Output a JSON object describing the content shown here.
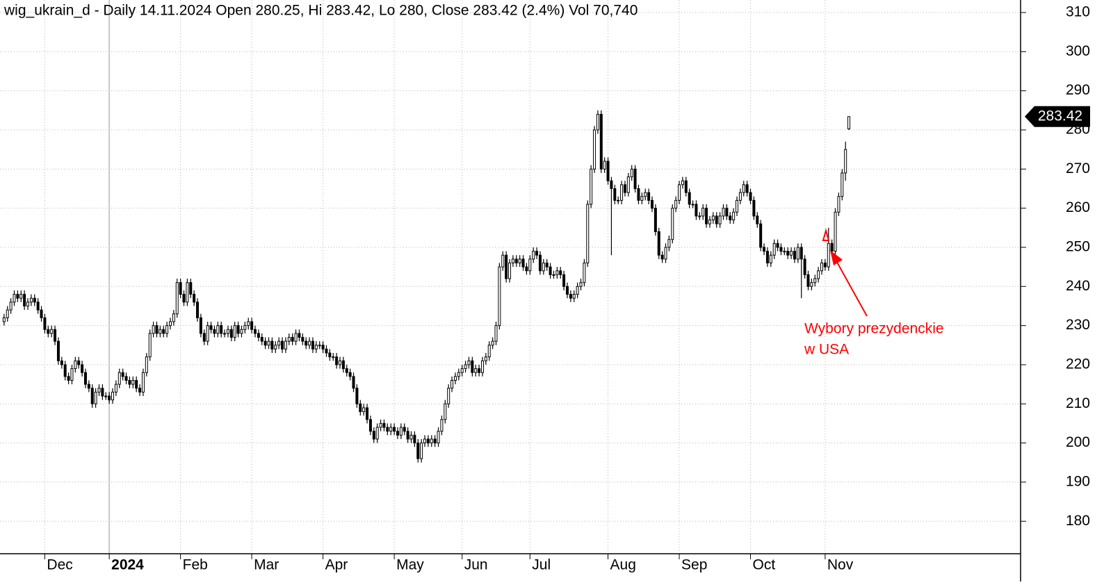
{
  "chart_data": {
    "type": "candlestick",
    "title": "wig_ukrain_d - Daily 14.11.2024 Open 280.25, Hi 283.42, Lo 280, Close 283.42 (2.4%) Vol 70,740",
    "annotation": [
      "Wybory prezydenckie",
      "w USA"
    ],
    "up_color": "#ffffff",
    "down_color": "#000000",
    "annotation_color": "#ff0000",
    "grid": true,
    "xlim": [
      -1.2,
      299.6
    ],
    "xticks": [
      {
        "value": 12,
        "label": "Dec"
      },
      {
        "value": 31,
        "label": "2024"
      },
      {
        "value": 52,
        "label": "Feb"
      },
      {
        "value": 73,
        "label": "Mar"
      },
      {
        "value": 94,
        "label": "Apr"
      },
      {
        "value": 115,
        "label": "May"
      },
      {
        "value": 135,
        "label": "Jun"
      },
      {
        "value": 155,
        "label": "Jul"
      },
      {
        "value": 178,
        "label": "Aug"
      },
      {
        "value": 199,
        "label": "Sep"
      },
      {
        "value": 220,
        "label": "Oct"
      },
      {
        "value": 242,
        "label": "Nov"
      }
    ],
    "ylim": [
      171.7,
      313.2
    ],
    "yticks": [
      180,
      190,
      200,
      210,
      220,
      230,
      240,
      250,
      260,
      270,
      280,
      290,
      300,
      310
    ],
    "close": [
      232,
      234,
      236,
      238,
      237,
      238,
      235,
      236,
      237,
      236,
      234,
      232,
      229,
      228,
      229,
      226,
      221,
      220,
      217,
      216,
      219,
      221,
      220,
      218,
      215,
      214,
      210,
      213,
      214,
      212,
      212,
      211,
      213,
      215,
      218,
      217,
      216,
      215,
      216,
      214,
      213,
      218,
      222,
      228,
      230,
      228,
      229,
      228,
      230,
      231,
      233,
      241,
      238,
      236,
      241,
      238,
      236,
      232,
      228,
      226,
      230,
      229,
      228,
      230,
      228,
      228,
      229,
      227,
      230,
      228,
      229,
      230,
      231,
      229,
      228,
      227,
      226,
      225,
      226,
      224,
      225,
      226,
      224,
      226,
      227,
      226,
      228,
      227,
      226,
      225,
      226,
      224,
      225,
      225,
      224,
      223,
      222,
      222,
      220,
      221,
      219,
      218,
      217,
      214,
      210,
      208,
      209,
      206,
      203,
      201,
      204,
      205,
      204,
      203,
      204,
      203,
      202,
      204,
      203,
      201,
      202,
      200,
      196,
      200,
      201,
      200,
      201,
      200,
      203,
      206,
      210,
      214,
      216,
      217,
      218,
      219,
      220,
      221,
      218,
      219,
      218,
      221,
      222,
      225,
      226,
      230,
      245,
      248,
      242,
      246,
      247,
      246,
      247,
      245,
      244,
      247,
      249,
      248,
      244,
      246,
      245,
      243,
      243,
      244,
      243,
      240,
      238,
      237,
      238,
      240,
      241,
      246,
      261,
      270,
      280,
      284,
      270,
      272,
      267,
      265,
      262,
      262,
      266,
      264,
      268,
      270,
      265,
      262,
      263,
      264,
      262,
      260,
      254,
      248,
      247,
      250,
      252,
      260,
      262,
      266,
      267,
      264,
      261,
      261,
      258,
      258,
      260,
      256,
      257,
      258,
      256,
      258,
      260,
      258,
      257,
      259,
      262,
      264,
      266,
      264,
      262,
      258,
      256,
      250,
      249,
      246,
      248,
      251,
      250,
      249,
      249,
      248,
      249,
      247,
      250,
      247,
      243,
      240,
      241,
      242,
      244,
      246,
      245,
      251,
      249,
      259,
      263,
      269,
      275,
      283.42
    ],
    "open": [
      231,
      232,
      234,
      236,
      238,
      237,
      238,
      235,
      236,
      237,
      236,
      234,
      232,
      229,
      228,
      229,
      226,
      221,
      220,
      217,
      216,
      219,
      221,
      220,
      218,
      215,
      214,
      210,
      213,
      214,
      212,
      212,
      211,
      213,
      215,
      218,
      217,
      216,
      215,
      216,
      214,
      213,
      218,
      222,
      228,
      230,
      228,
      229,
      228,
      230,
      231,
      233,
      241,
      238,
      236,
      241,
      238,
      236,
      232,
      228,
      226,
      230,
      229,
      228,
      230,
      228,
      228,
      229,
      227,
      230,
      228,
      229,
      230,
      231,
      229,
      228,
      227,
      226,
      225,
      226,
      224,
      225,
      226,
      224,
      226,
      227,
      226,
      228,
      227,
      226,
      225,
      226,
      224,
      225,
      225,
      224,
      223,
      222,
      222,
      220,
      221,
      219,
      218,
      217,
      214,
      210,
      208,
      209,
      206,
      203,
      201,
      204,
      205,
      204,
      203,
      204,
      203,
      202,
      204,
      203,
      201,
      202,
      200,
      196,
      200,
      201,
      200,
      201,
      200,
      203,
      206,
      210,
      214,
      216,
      217,
      218,
      219,
      220,
      221,
      218,
      219,
      218,
      221,
      222,
      225,
      226,
      230,
      245,
      248,
      242,
      246,
      247,
      246,
      247,
      245,
      244,
      247,
      249,
      248,
      244,
      246,
      245,
      243,
      243,
      244,
      243,
      240,
      238,
      237,
      238,
      240,
      241,
      246,
      261,
      270,
      280,
      284,
      270,
      272,
      267,
      265,
      262,
      262,
      266,
      264,
      268,
      270,
      265,
      262,
      263,
      264,
      262,
      260,
      254,
      248,
      247,
      250,
      252,
      260,
      262,
      266,
      267,
      264,
      261,
      261,
      258,
      258,
      260,
      256,
      257,
      258,
      256,
      258,
      260,
      258,
      257,
      259,
      262,
      264,
      266,
      264,
      262,
      258,
      256,
      250,
      249,
      246,
      248,
      251,
      250,
      249,
      249,
      248,
      249,
      247,
      250,
      247,
      243,
      240,
      241,
      242,
      244,
      246,
      245,
      251,
      249,
      259,
      263,
      269,
      280.25
    ],
    "high": [
      233,
      235,
      237,
      239,
      239,
      239,
      239,
      237,
      238,
      238,
      237,
      235,
      233,
      230,
      230,
      230,
      227,
      222,
      221,
      218,
      220,
      222,
      222,
      221,
      219,
      216,
      215,
      214,
      215,
      215,
      213,
      213,
      214,
      216,
      219,
      219,
      218,
      217,
      217,
      217,
      215,
      219,
      223,
      229,
      231,
      231,
      230,
      230,
      231,
      232,
      234,
      242,
      242,
      239,
      242,
      242,
      239,
      237,
      233,
      229,
      231,
      231,
      230,
      231,
      231,
      229,
      230,
      230,
      231,
      231,
      230,
      231,
      232,
      232,
      230,
      229,
      228,
      227,
      227,
      227,
      226,
      227,
      227,
      227,
      228,
      228,
      229,
      229,
      228,
      227,
      227,
      227,
      226,
      226,
      226,
      225,
      224,
      223,
      223,
      222,
      222,
      220,
      219,
      218,
      215,
      211,
      210,
      210,
      207,
      204,
      205,
      206,
      206,
      205,
      205,
      205,
      204,
      205,
      205,
      204,
      203,
      203,
      201,
      201,
      202,
      202,
      202,
      202,
      204,
      207,
      211,
      215,
      217,
      218,
      219,
      220,
      221,
      222,
      222,
      220,
      220,
      222,
      223,
      226,
      227,
      231,
      246,
      249,
      249,
      247,
      248,
      248,
      248,
      248,
      246,
      248,
      250,
      250,
      249,
      247,
      247,
      246,
      244,
      245,
      245,
      244,
      241,
      239,
      239,
      241,
      242,
      247,
      262,
      271,
      281,
      285,
      285,
      273,
      273,
      268,
      266,
      263,
      267,
      267,
      269,
      271,
      271,
      266,
      264,
      265,
      265,
      263,
      261,
      255,
      249,
      251,
      253,
      261,
      263,
      267,
      268,
      268,
      265,
      262,
      262,
      259,
      261,
      261,
      258,
      259,
      259,
      259,
      261,
      261,
      259,
      260,
      263,
      265,
      267,
      267,
      265,
      263,
      259,
      257,
      251,
      250,
      249,
      252,
      252,
      251,
      250,
      250,
      250,
      250,
      251,
      251,
      248,
      244,
      242,
      243,
      245,
      247,
      247,
      255,
      252,
      260,
      264,
      270,
      277,
      283.42
    ],
    "low": [
      230,
      231,
      233,
      235,
      236,
      236,
      234,
      234,
      235,
      235,
      233,
      231,
      228,
      227,
      227,
      225,
      220,
      219,
      216,
      215,
      215,
      218,
      219,
      217,
      214,
      213,
      209,
      209,
      212,
      211,
      211,
      210,
      210,
      212,
      214,
      216,
      215,
      214,
      214,
      213,
      212,
      212,
      217,
      221,
      227,
      227,
      227,
      227,
      227,
      229,
      230,
      232,
      237,
      235,
      235,
      237,
      235,
      231,
      227,
      225,
      225,
      228,
      227,
      227,
      227,
      227,
      227,
      226,
      226,
      227,
      227,
      228,
      229,
      228,
      227,
      226,
      225,
      224,
      224,
      223,
      223,
      224,
      223,
      223,
      225,
      225,
      225,
      226,
      225,
      224,
      224,
      223,
      223,
      224,
      223,
      222,
      221,
      221,
      219,
      219,
      218,
      217,
      216,
      213,
      209,
      207,
      207,
      205,
      202,
      200,
      200,
      203,
      203,
      202,
      202,
      202,
      201,
      201,
      202,
      200,
      200,
      199,
      195,
      195,
      199,
      199,
      199,
      199,
      199,
      202,
      205,
      209,
      213,
      215,
      216,
      217,
      218,
      219,
      217,
      217,
      217,
      217,
      220,
      221,
      224,
      225,
      229,
      244,
      241,
      241,
      245,
      245,
      245,
      244,
      243,
      243,
      246,
      247,
      243,
      243,
      244,
      242,
      242,
      242,
      242,
      239,
      237,
      236,
      236,
      237,
      239,
      240,
      245,
      260,
      269,
      279,
      269,
      269,
      266,
      248,
      261,
      261,
      261,
      263,
      263,
      267,
      264,
      261,
      261,
      262,
      261,
      259,
      253,
      247,
      246,
      246,
      249,
      251,
      259,
      261,
      265,
      263,
      260,
      260,
      257,
      257,
      257,
      255,
      255,
      256,
      255,
      255,
      257,
      257,
      256,
      256,
      258,
      261,
      263,
      263,
      261,
      257,
      255,
      249,
      248,
      245,
      245,
      247,
      249,
      248,
      248,
      247,
      247,
      246,
      246,
      237,
      242,
      239,
      239,
      240,
      241,
      243,
      244,
      244,
      248,
      248,
      258,
      262,
      267,
      280
    ]
  }
}
